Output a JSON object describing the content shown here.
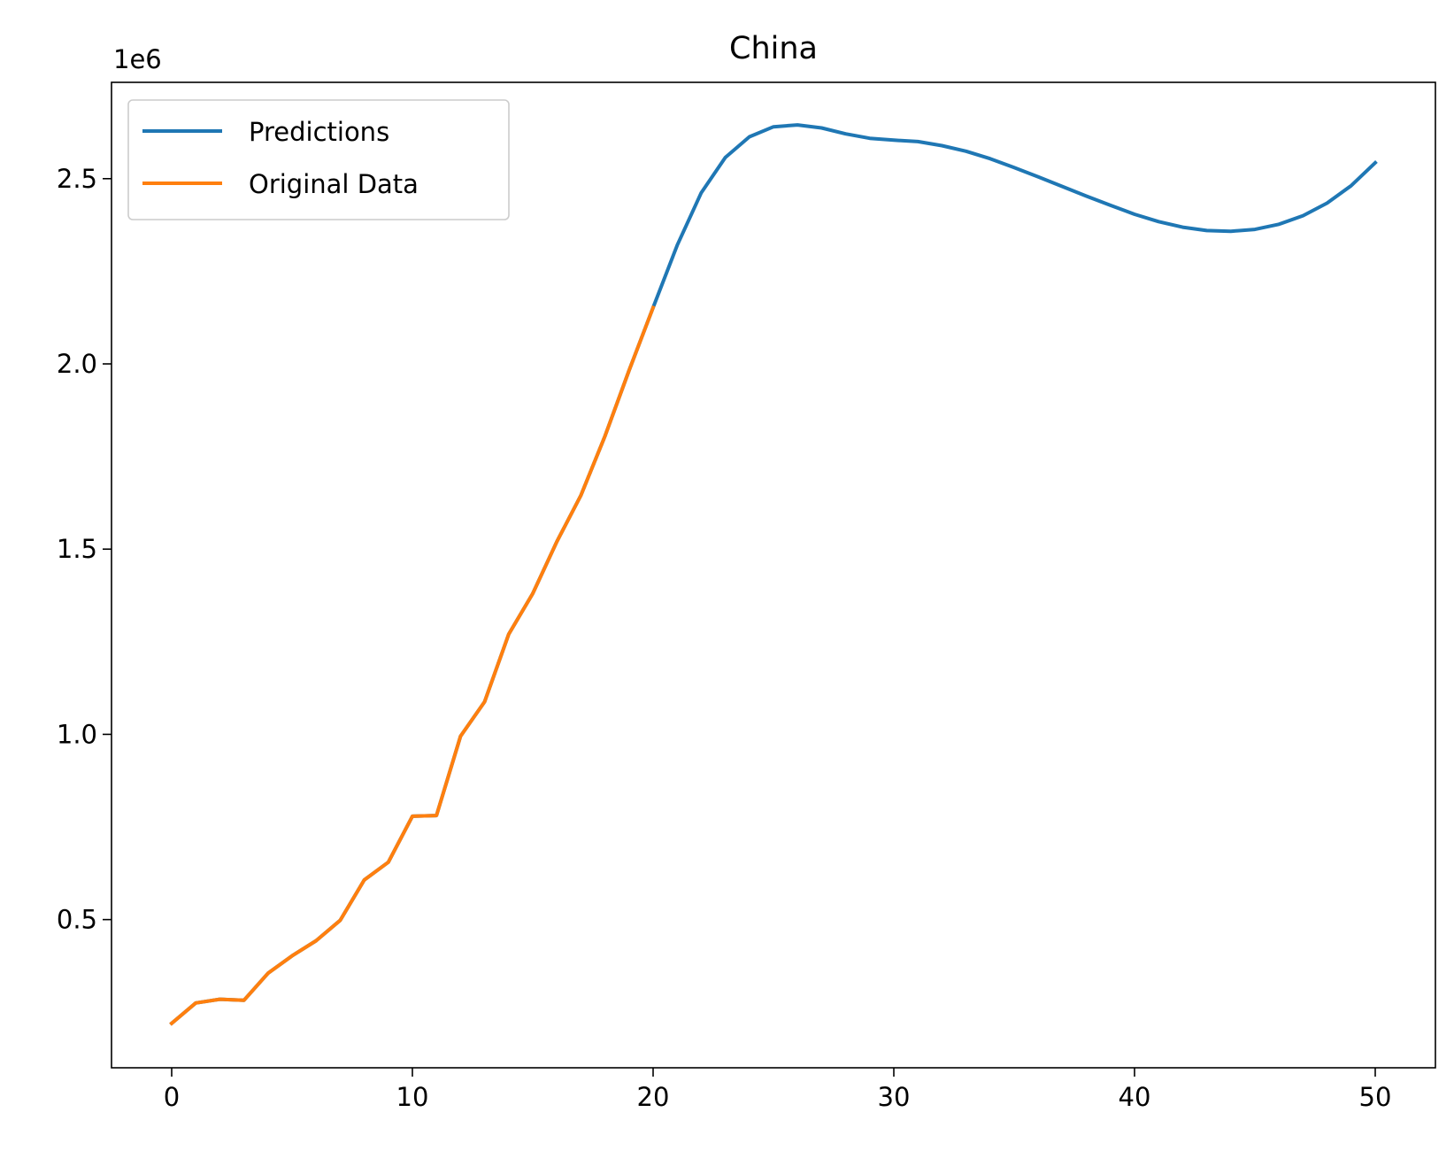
{
  "chart_data": {
    "type": "line",
    "title": "China",
    "xlabel": "",
    "ylabel": "",
    "y_offset_label": "1e6",
    "xlim": [
      -2.5,
      52.5
    ],
    "ylim": [
      100000,
      2760000
    ],
    "x_ticks": [
      {
        "value": 0,
        "label": "0"
      },
      {
        "value": 10,
        "label": "10"
      },
      {
        "value": 20,
        "label": "20"
      },
      {
        "value": 30,
        "label": "30"
      },
      {
        "value": 40,
        "label": "40"
      },
      {
        "value": 50,
        "label": "50"
      }
    ],
    "y_ticks": [
      {
        "value": 500000,
        "label": "0.5"
      },
      {
        "value": 1000000,
        "label": "1.0"
      },
      {
        "value": 1500000,
        "label": "1.5"
      },
      {
        "value": 2000000,
        "label": "2.0"
      },
      {
        "value": 2500000,
        "label": "2.5"
      }
    ],
    "grid": false,
    "legend_position": "top-left",
    "series": [
      {
        "name": "Predictions",
        "color": "#1f77b4",
        "x": [
          0,
          1,
          2,
          3,
          4,
          5,
          6,
          7,
          8,
          9,
          10,
          11,
          12,
          13,
          14,
          15,
          16,
          17,
          18,
          19,
          20,
          21,
          22,
          23,
          24,
          25,
          26,
          27,
          28,
          29,
          30,
          31,
          32,
          33,
          34,
          35,
          36,
          37,
          38,
          39,
          40,
          41,
          42,
          43,
          44,
          45,
          46,
          47,
          48,
          49,
          50
        ],
        "y": [
          220000,
          275000,
          285000,
          282000,
          355000,
          402000,
          443000,
          498000,
          607000,
          655000,
          779000,
          781000,
          995000,
          1088000,
          1270000,
          1380000,
          1520000,
          1645000,
          1805000,
          1982000,
          2152000,
          2320000,
          2462000,
          2557000,
          2613000,
          2640000,
          2645000,
          2637000,
          2621000,
          2609000,
          2604000,
          2600000,
          2589000,
          2574000,
          2554000,
          2530000,
          2505000,
          2479000,
          2453000,
          2428000,
          2404000,
          2384000,
          2369000,
          2360000,
          2358000,
          2363000,
          2377000,
          2400000,
          2434000,
          2481000,
          2543000
        ]
      },
      {
        "name": "Original Data",
        "color": "#ff7f0e",
        "x": [
          0,
          1,
          2,
          3,
          4,
          5,
          6,
          7,
          8,
          9,
          10,
          11,
          12,
          13,
          14,
          15,
          16,
          17,
          18,
          19,
          20
        ],
        "y": [
          220000,
          275000,
          285000,
          282000,
          355000,
          402000,
          443000,
          498000,
          607000,
          655000,
          779000,
          781000,
          995000,
          1088000,
          1270000,
          1380000,
          1520000,
          1645000,
          1805000,
          1982000,
          2152000
        ]
      }
    ]
  }
}
